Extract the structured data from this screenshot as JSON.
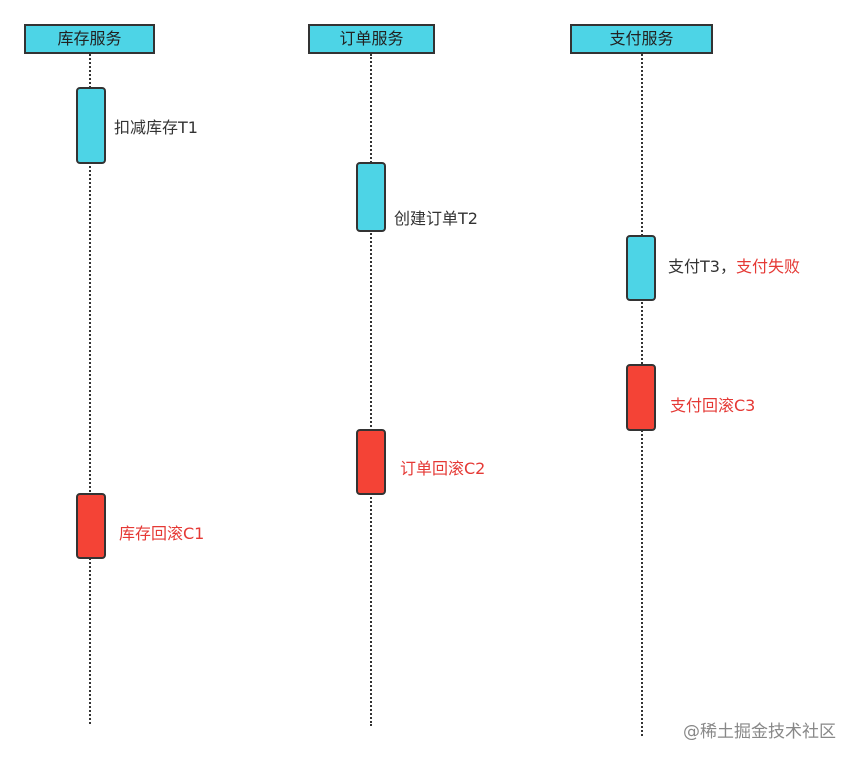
{
  "participants": [
    {
      "label": "库存服务"
    },
    {
      "label": "订单服务"
    },
    {
      "label": "支付服务"
    }
  ],
  "steps": {
    "t1": "扣减库存T1",
    "t2": "创建订单T2",
    "t3": "支付T3，",
    "t3_fail": "支付失败",
    "c3": "支付回滚C3",
    "c2": "订单回滚C2",
    "c1": "库存回滚C1"
  },
  "colors": {
    "forward": "#4dd4e6",
    "compensate": "#f44336",
    "failure_text": "#e53935"
  },
  "watermark": "@稀土掘金技术社区"
}
